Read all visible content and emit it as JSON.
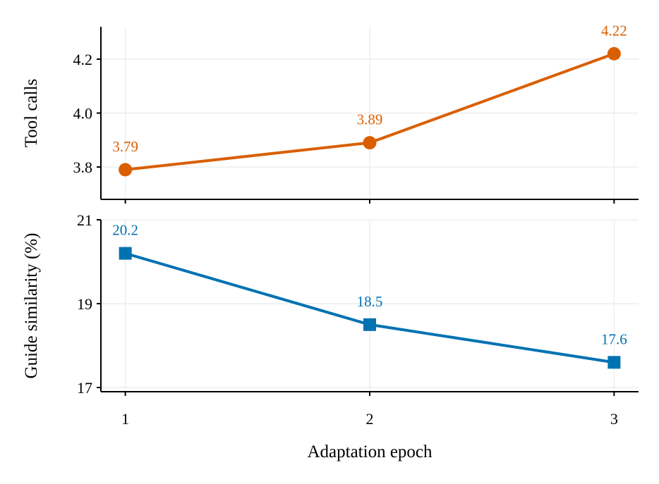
{
  "chart_data": [
    {
      "type": "line",
      "x": [
        1,
        2,
        3
      ],
      "series": [
        {
          "values": [
            3.79,
            3.89,
            4.22
          ],
          "data_labels": [
            "3.79",
            "3.89",
            "4.22"
          ]
        }
      ],
      "title": "",
      "xlabel": "",
      "ylabel": "Tool calls",
      "ylim": [
        3.68,
        4.32
      ],
      "yticks": [
        3.8,
        4.0,
        4.2
      ],
      "ytick_labels": [
        "3.8",
        "4.0",
        "4.2"
      ],
      "xlim": [
        0.9,
        3.1
      ],
      "xticks": [
        1,
        2,
        3
      ],
      "marker": "circle",
      "color": "#d95f02",
      "grid": true,
      "legend": "none"
    },
    {
      "type": "line",
      "x": [
        1,
        2,
        3
      ],
      "series": [
        {
          "values": [
            20.2,
            18.5,
            17.6
          ],
          "data_labels": [
            "20.2",
            "18.5",
            "17.6"
          ]
        }
      ],
      "title": "",
      "xlabel": "Adaptation epoch",
      "ylabel": "Guide similarity (%)",
      "ylim": [
        16.9,
        21.0
      ],
      "yticks": [
        17,
        19,
        21
      ],
      "ytick_labels": [
        "17",
        "19",
        "21"
      ],
      "xlim": [
        0.9,
        3.1
      ],
      "xticks": [
        1,
        2,
        3
      ],
      "xtick_labels": [
        "1",
        "2",
        "3"
      ],
      "marker": "square",
      "color": "#0072b2",
      "grid": true,
      "legend": "none"
    }
  ]
}
